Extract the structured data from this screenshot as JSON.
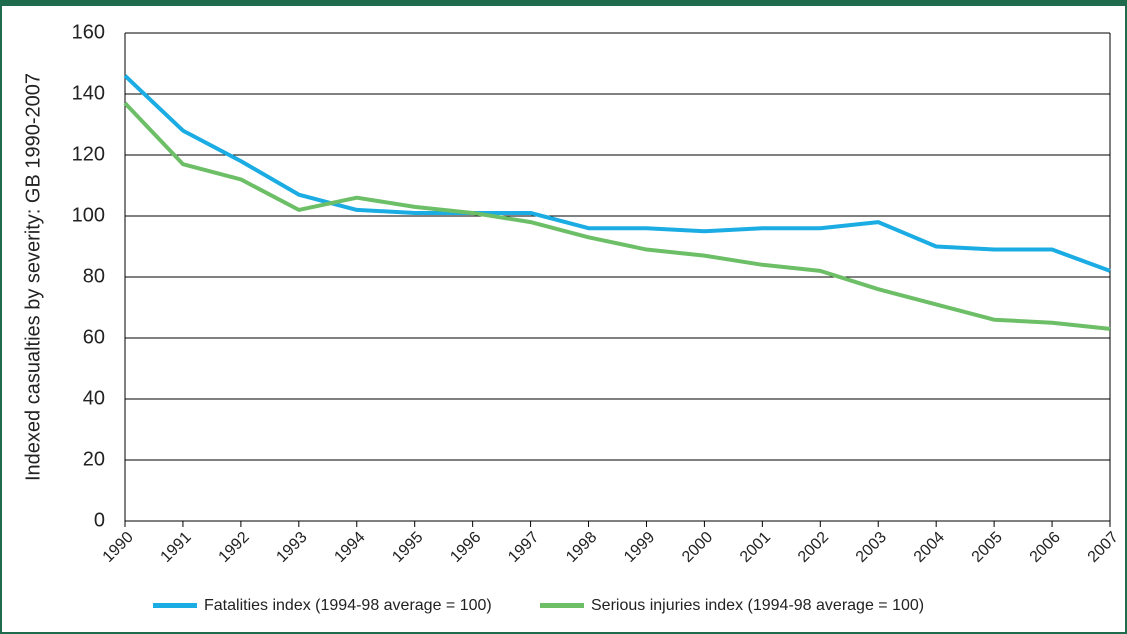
{
  "chart_data": {
    "type": "line",
    "y_label": "Indexed casualties by severity: GB 1990-2007",
    "x": [
      1990,
      1991,
      1992,
      1993,
      1994,
      1995,
      1996,
      1997,
      1998,
      1999,
      2000,
      2001,
      2002,
      2003,
      2004,
      2005,
      2006,
      2007
    ],
    "xlim": [
      1990,
      2007
    ],
    "xticks": [
      1990,
      1991,
      1992,
      1993,
      1994,
      1995,
      1996,
      1997,
      1998,
      1999,
      2000,
      2001,
      2002,
      2003,
      2004,
      2005,
      2006,
      2007
    ],
    "ylim": [
      0,
      160
    ],
    "yticks": [
      0,
      20,
      40,
      60,
      80,
      100,
      120,
      140,
      160
    ],
    "grid": true,
    "legend": "bottom",
    "series": [
      {
        "name": "Fatalities index (1994-98 average = 100)",
        "color": "#1aace3",
        "values": [
          146,
          128,
          118,
          107,
          102,
          101,
          101,
          101,
          96,
          96,
          95,
          96,
          96,
          98,
          90,
          89,
          89,
          82
        ]
      },
      {
        "name": "Serious injuries index (1994-98 average = 100)",
        "color": "#6dbf67",
        "values": [
          137,
          117,
          112,
          102,
          106,
          103,
          101,
          98,
          93,
          89,
          87,
          84,
          82,
          76,
          71,
          66,
          65,
          63
        ]
      }
    ]
  }
}
